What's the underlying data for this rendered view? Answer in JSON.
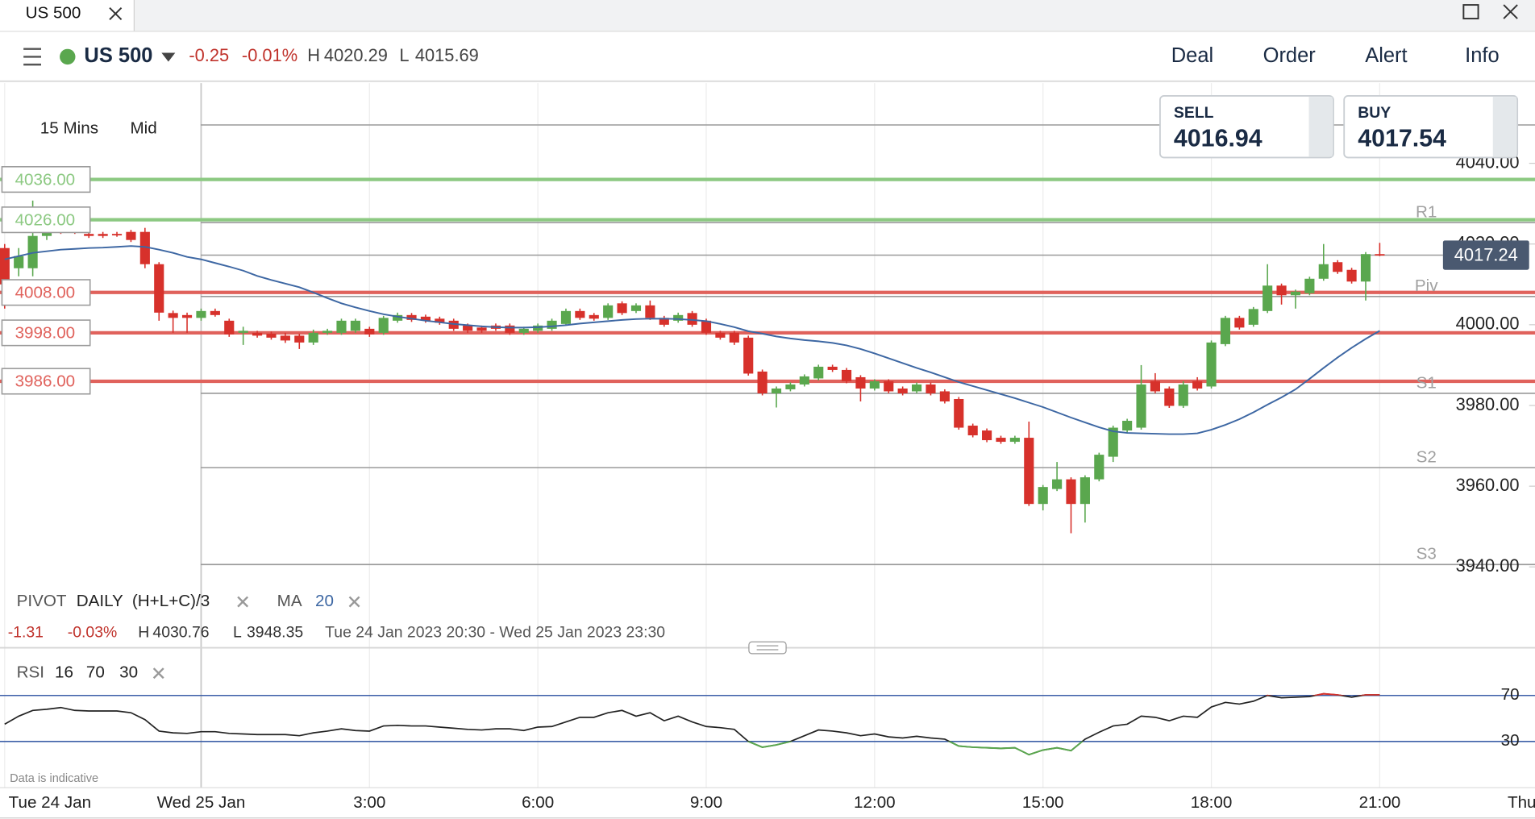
{
  "window": {
    "tab": "US 500"
  },
  "toolbar": {
    "instrument": "US 500",
    "change": -0.25,
    "change_pct": {
      "value": -0.01,
      "label": "-0.01%"
    },
    "high_label": "H",
    "high": 4020.29,
    "low_label": "L",
    "low": 4015.69,
    "menu": [
      "Deal",
      "Order",
      "Alert",
      "Info"
    ]
  },
  "quote": {
    "sell_label": "SELL",
    "sell": 4016.94,
    "buy_label": "BUY",
    "buy": 4017.54
  },
  "summary": {
    "change": -1.31,
    "change_pct": {
      "value": -0.03,
      "label": "-0.03%"
    },
    "high_label": "H",
    "high": 4030.76,
    "low_label": "L",
    "low": 3948.35,
    "range": "Tue 24 Jan 2023 20:30 - Wed 25 Jan 2023 23:30"
  },
  "footer_note": "Data is indicative",
  "chart_data": {
    "type": "candlestick",
    "interval": "15 Mins",
    "price_type": "Mid",
    "up_color": "#5aa74e",
    "down_color": "#d7312b",
    "grid": true,
    "x": [
      "2023-01-24 20:30",
      "2023-01-24 20:45",
      "2023-01-24 21:00",
      "2023-01-24 21:15",
      "2023-01-24 21:30",
      "2023-01-24 21:45",
      "2023-01-24 22:00",
      "2023-01-24 22:15",
      "2023-01-24 22:30",
      "2023-01-24 22:45",
      "2023-01-24 23:00",
      "2023-01-24 23:15",
      "2023-01-24 23:30",
      "2023-01-24 23:45",
      "2023-01-25 00:00",
      "2023-01-25 00:15",
      "2023-01-25 00:30",
      "2023-01-25 00:45",
      "2023-01-25 01:00",
      "2023-01-25 01:15",
      "2023-01-25 01:30",
      "2023-01-25 01:45",
      "2023-01-25 02:00",
      "2023-01-25 02:15",
      "2023-01-25 02:30",
      "2023-01-25 02:45",
      "2023-01-25 03:00",
      "2023-01-25 03:15",
      "2023-01-25 03:30",
      "2023-01-25 03:45",
      "2023-01-25 04:00",
      "2023-01-25 04:15",
      "2023-01-25 04:30",
      "2023-01-25 04:45",
      "2023-01-25 05:00",
      "2023-01-25 05:15",
      "2023-01-25 05:30",
      "2023-01-25 05:45",
      "2023-01-25 06:00",
      "2023-01-25 06:15",
      "2023-01-25 06:30",
      "2023-01-25 06:45",
      "2023-01-25 07:00",
      "2023-01-25 07:15",
      "2023-01-25 07:30",
      "2023-01-25 07:45",
      "2023-01-25 08:00",
      "2023-01-25 08:15",
      "2023-01-25 08:30",
      "2023-01-25 08:45",
      "2023-01-25 09:00",
      "2023-01-25 09:15",
      "2023-01-25 09:30",
      "2023-01-25 09:45",
      "2023-01-25 10:00",
      "2023-01-25 10:15",
      "2023-01-25 10:30",
      "2023-01-25 10:45",
      "2023-01-25 11:00",
      "2023-01-25 11:15",
      "2023-01-25 11:30",
      "2023-01-25 11:45",
      "2023-01-25 12:00",
      "2023-01-25 12:15",
      "2023-01-25 12:30",
      "2023-01-25 12:45",
      "2023-01-25 13:00",
      "2023-01-25 13:15",
      "2023-01-25 13:30",
      "2023-01-25 13:45",
      "2023-01-25 14:00",
      "2023-01-25 14:15",
      "2023-01-25 14:30",
      "2023-01-25 14:45",
      "2023-01-25 15:00",
      "2023-01-25 15:15",
      "2023-01-25 15:30",
      "2023-01-25 15:45",
      "2023-01-25 16:00",
      "2023-01-25 16:15",
      "2023-01-25 16:30",
      "2023-01-25 16:45",
      "2023-01-25 17:00",
      "2023-01-25 17:15",
      "2023-01-25 17:30",
      "2023-01-25 17:45",
      "2023-01-25 18:00",
      "2023-01-25 18:15",
      "2023-01-25 18:30",
      "2023-01-25 18:45",
      "2023-01-25 19:00",
      "2023-01-25 19:15",
      "2023-01-25 19:30",
      "2023-01-25 19:45",
      "2023-01-25 20:00",
      "2023-01-25 20:15",
      "2023-01-25 20:30",
      "2023-01-25 20:45",
      "2023-01-25 21:00"
    ],
    "open": [
      4019,
      4014,
      4014,
      4022,
      4025,
      4024,
      4022.5,
      4022.5,
      4022.5,
      4023,
      4023,
      4015,
      4002.9,
      4002.4,
      4001.7,
      4003.4,
      4001,
      3998,
      3998,
      3997.8,
      3997.3,
      3997.3,
      3995.6,
      3998,
      3998,
      3998.5,
      3999,
      3998,
      4001,
      4002.4,
      4002,
      4001.5,
      4001,
      3999.8,
      3999.3,
      3999.8,
      3999.8,
      3998,
      3998.5,
      3999,
      4000.2,
      4003.4,
      4002.4,
      4001.7,
      4005.3,
      4003.4,
      4004.8,
      4001.7,
      4001,
      4002.9,
      4001,
      3998,
      3998,
      3996.8,
      3988.4,
      3983,
      3984,
      3985.2,
      3986.7,
      3989.6,
      3988.8,
      3987,
      3984.2,
      3986,
      3984.2,
      3983.5,
      3985.2,
      3983.5,
      3981.6,
      3975,
      3973.8,
      3972,
      3971,
      3972,
      3955.6,
      3959.3,
      3961.7,
      3955.6,
      3961.7,
      3967.3,
      3973.8,
      3974.5,
      3986,
      3984.2,
      3979.9,
      3986,
      3984.7,
      3995.2,
      4001.7,
      4000,
      4003.4,
      4009.7,
      4007.3,
      4007.8,
      4011.4,
      4015.5,
      4013.6,
      4010.7,
      4017.5
    ],
    "high": [
      4020,
      4019,
      4030.76,
      4025,
      4025.5,
      4024.5,
      4023,
      4023,
      4023,
      4023.5,
      4024,
      4015.5,
      4003.5,
      4003,
      4004,
      4004,
      4001.5,
      3999.5,
      3998.5,
      3998.3,
      3998,
      3997.8,
      3998.8,
      3999,
      4001.5,
      4001.5,
      3999.5,
      4002.2,
      4003,
      4002.9,
      4002.5,
      4002,
      4001.5,
      4000.3,
      3999.8,
      4000.3,
      4000.3,
      3999.5,
      4000.3,
      4001.5,
      4004,
      4004,
      4002.9,
      4005.3,
      4005.8,
      4005.3,
      4006,
      4002.2,
      4003,
      4003.4,
      4001.5,
      3998.5,
      3998.5,
      3997.3,
      3988.9,
      3984.7,
      3985.7,
      3987.7,
      3990.1,
      3990.1,
      3989.3,
      3987.5,
      3986.5,
      3986.5,
      3984.7,
      3985.7,
      3985.7,
      3984,
      3982.1,
      3975.5,
      3974.3,
      3972.5,
      3972.5,
      3976,
      3960.3,
      3966,
      3962.2,
      3962.7,
      3968.3,
      3975,
      3976.7,
      3990,
      3988,
      3984.7,
      3986,
      3987,
      3996.1,
      4002.2,
      4002.2,
      4004.4,
      4015,
      4010.2,
      4008.7,
      4011.9,
      4020,
      4016,
      4014.1,
      4018,
      4020.29
    ],
    "low": [
      4004,
      4012,
      4012,
      4021,
      4022.5,
      4022.5,
      4021.5,
      4021.5,
      4021.8,
      4020.5,
      4014,
      4001,
      3998,
      3998,
      4001,
      4002,
      3997,
      3995,
      3996.8,
      3996.3,
      3995.5,
      3994,
      3995,
      3997.5,
      3997.5,
      3998,
      3997,
      3997.5,
      4000.5,
      4000.7,
      4000.5,
      4000,
      3998.5,
      3998,
      3998,
      3998.5,
      3997.5,
      3997.5,
      3998,
      3998.5,
      3999.8,
      4001.2,
      4001,
      4001.2,
      4002.4,
      4002.9,
      4001.2,
      3999.5,
      4000.5,
      3999.5,
      3997.5,
      3996.3,
      3995,
      3987.4,
      3982.5,
      3979.5,
      3983.5,
      3984.7,
      3986.2,
      3988.3,
      3985.5,
      3981,
      3983.7,
      3983,
      3982.5,
      3983,
      3982.5,
      3980.5,
      3974,
      3972.1,
      3970.9,
      3970.5,
      3970.5,
      3955.1,
      3954,
      3958.8,
      3948.35,
      3951,
      3961.2,
      3966,
      3973.3,
      3974,
      3983,
      3979.4,
      3979.4,
      3983.7,
      3984.2,
      3994.7,
      3998.8,
      3999.5,
      4002.9,
      4005,
      4004,
      4007.3,
      4010.9,
      4012.6,
      4010.2,
      4006,
      4017
    ],
    "close": [
      4010,
      4017,
      4022,
      4024,
      4023,
      4023,
      4022,
      4022,
      4022.2,
      4021,
      4015,
      4003,
      4001.7,
      4001.7,
      4003.4,
      4002.4,
      3997.6,
      3998.5,
      3997.3,
      3996.8,
      3996.1,
      3995.6,
      3998,
      3998.5,
      4001,
      4001,
      3997.6,
      4001.7,
      4002.4,
      4001.2,
      4001,
      4000.5,
      3999,
      3998.5,
      3998.5,
      3999,
      3998,
      3999,
      3999.8,
      4001,
      4003.4,
      4001.7,
      4001.5,
      4004.8,
      4002.9,
      4004.8,
      4001.7,
      4000,
      4002.4,
      4000,
      3998,
      3996.8,
      3995.6,
      3987.9,
      3983,
      3984.2,
      3985.2,
      3987.2,
      3989.6,
      3988.8,
      3986,
      3984.2,
      3986,
      3983.5,
      3983,
      3985.2,
      3983,
      3981,
      3974.5,
      3972.6,
      3971.4,
      3971,
      3972,
      3955.6,
      3959.8,
      3961.7,
      3955.6,
      3962.2,
      3967.8,
      3974.5,
      3976.2,
      3985.2,
      3983.5,
      3979.9,
      3985.2,
      3984.2,
      3995.6,
      4001.7,
      3999.3,
      4003.9,
      4009.7,
      4007.3,
      4008.2,
      4011.4,
      4015,
      4013.1,
      4010.7,
      4017.5,
      4017.24
    ],
    "xlim": [
      "2023-01-24 20:25",
      "2023-01-25 23:46"
    ],
    "xticks": [
      {
        "value": "2023-01-24 20:30",
        "label": "Tue 24 Jan"
      },
      {
        "value": "2023-01-25 00:00",
        "label": "Wed 25 Jan"
      },
      {
        "value": "2023-01-25 03:00",
        "label": "3:00"
      },
      {
        "value": "2023-01-25 06:00",
        "label": "6:00"
      },
      {
        "value": "2023-01-25 09:00",
        "label": "9:00"
      },
      {
        "value": "2023-01-25 12:00",
        "label": "12:00"
      },
      {
        "value": "2023-01-25 15:00",
        "label": "15:00"
      },
      {
        "value": "2023-01-25 18:00",
        "label": "18:00"
      },
      {
        "value": "2023-01-25 21:00",
        "label": "21:00"
      },
      {
        "value": "2023-01-26 00:00",
        "label": "Thu"
      }
    ],
    "ylim": [
      3935,
      4059.85
    ],
    "yticks": [
      {
        "value": 4040,
        "label": "4040.00"
      },
      {
        "value": 4020,
        "label": "4020.00"
      },
      {
        "value": 4000,
        "label": "4000.00"
      },
      {
        "value": 3980,
        "label": "3980.00"
      },
      {
        "value": 3960,
        "label": "3960.00"
      },
      {
        "value": 3940,
        "label": "3940.00"
      }
    ],
    "last_price": 4017.24,
    "alerts": [
      {
        "value": 4036,
        "label": "4036.00",
        "color": "#8cc982"
      },
      {
        "value": 4026,
        "label": "4026.00",
        "color": "#8cc982"
      },
      {
        "value": 4008,
        "label": "4008.00",
        "color": "#e0625c"
      },
      {
        "value": 3998,
        "label": "3998.00",
        "color": "#e0625c"
      },
      {
        "value": 3986,
        "label": "3986.00",
        "color": "#e0625c"
      }
    ],
    "pivot": {
      "name": "PIVOT",
      "timeframe": "DAILY",
      "formula": "(H+L+C)/3",
      "color": "#9a9a9a",
      "levels": [
        {
          "label": null,
          "value": 4049.5
        },
        {
          "label": "R1",
          "value": 4025.3
        },
        {
          "label": "Piv",
          "value": 4007
        },
        {
          "label": "S1",
          "value": 3983
        },
        {
          "label": "S2",
          "value": 3964.6
        },
        {
          "label": "S3",
          "value": 3940.6
        }
      ]
    },
    "ma": {
      "name": "MA",
      "period": 20,
      "color": "#3d67a3",
      "values": [
        4016.2,
        4017,
        4017.8,
        4018.2,
        4018.6,
        4018.8,
        4019,
        4019.1,
        4019.3,
        4019.5,
        4019.3,
        4018.6,
        4017.8,
        4016.8,
        4016.2,
        4015.3,
        4014.4,
        4013.4,
        4012.1,
        4011.1,
        4010.2,
        4009.3,
        4008,
        4006.6,
        4005.3,
        4004.3,
        4003.4,
        4002.6,
        4002,
        4001.5,
        4001,
        4000.6,
        4000.2,
        3999.9,
        3999.6,
        3999.4,
        3999.3,
        3999.3,
        3999.4,
        3999.6,
        3999.9,
        4000.3,
        4000.6,
        4000.9,
        4001.2,
        4001.4,
        4001.5,
        4001.5,
        4001.4,
        4001.2,
        4000.9,
        4000.2,
        3999.4,
        3998.4,
        3997.8,
        3997.1,
        3996.6,
        3996.2,
        3995.9,
        3995.5,
        3994.9,
        3994,
        3992.9,
        3991.7,
        3990.5,
        3989.3,
        3988.2,
        3987,
        3985.8,
        3984.8,
        3983.8,
        3982.8,
        3981.8,
        3980.7,
        3979.6,
        3978.3,
        3977,
        3975.8,
        3974.6,
        3973.6,
        3973.2,
        3973.1,
        3973,
        3972.9,
        3972.9,
        3973.1,
        3974,
        3975.2,
        3976.6,
        3978.3,
        3980.2,
        3982,
        3984,
        3986.6,
        3989.3,
        3991.9,
        3994.3,
        3996.5,
        3998.5
      ]
    },
    "rsi": {
      "name": "RSI",
      "period": 16,
      "upper": 70,
      "lower": 30,
      "ylim": [
        0,
        100
      ],
      "color": "#222222",
      "above_color": "#d7312b",
      "below_color": "#5aa74e",
      "level_color": "#3d5fa8",
      "values": [
        45,
        52,
        57,
        58,
        59.5,
        57,
        56.5,
        56.5,
        56.5,
        55,
        49,
        39,
        37.5,
        37,
        38.5,
        38.5,
        37,
        36.5,
        36,
        36,
        36,
        35,
        37.5,
        39,
        41,
        39.5,
        39,
        43.5,
        44,
        43.5,
        43.5,
        42.5,
        41.5,
        40.5,
        40,
        41,
        41,
        39.5,
        42.5,
        43,
        47,
        51,
        51,
        55,
        57,
        52,
        55,
        48,
        52,
        47,
        43,
        42,
        40.5,
        30,
        25,
        27,
        30,
        35,
        40,
        39,
        37.5,
        35,
        36.5,
        34,
        33,
        34.5,
        33,
        32,
        26,
        25,
        24.5,
        24,
        24.5,
        18.5,
        22.5,
        24.5,
        22,
        32,
        38,
        43.5,
        45,
        52,
        51,
        48,
        52,
        51,
        60,
        64,
        62.5,
        65,
        70,
        68,
        68.5,
        69,
        71.5,
        70.5,
        68.5,
        70.5,
        70.5
      ]
    }
  }
}
